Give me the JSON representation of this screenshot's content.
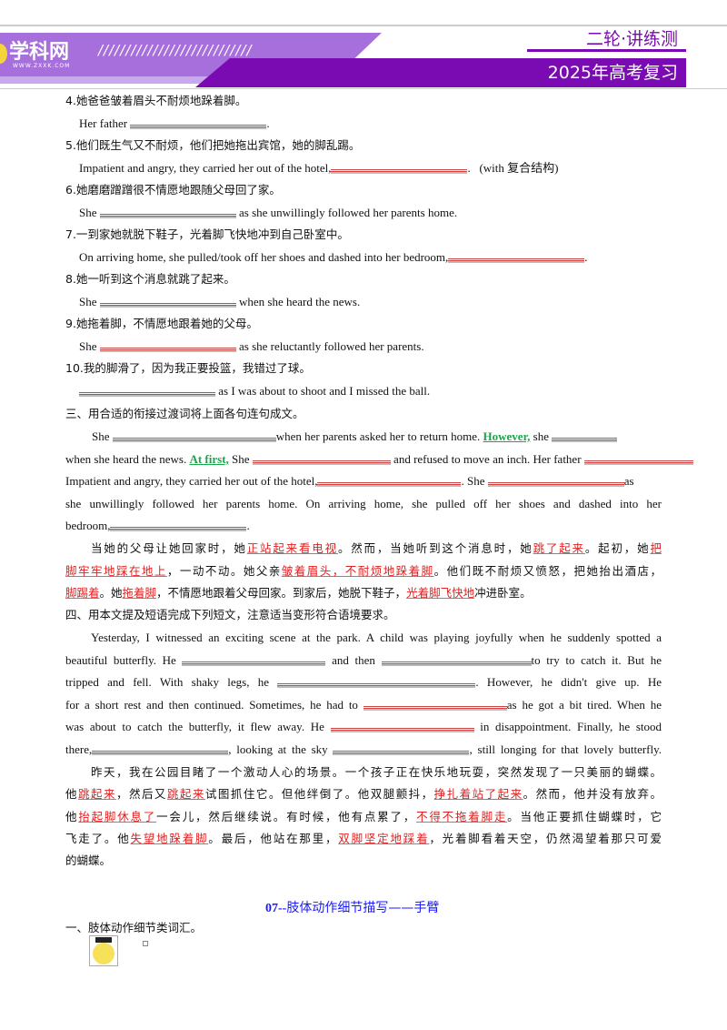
{
  "header": {
    "logo": "学科网",
    "logo_sub": "WWW.ZXXK.COM",
    "slashes": "////////////////////////////",
    "series": "二轮·讲练测",
    "subtitle": "2025年高考复习",
    "accent": "#7a0bb3"
  },
  "items": [
    {
      "zh": "4.她爸爸皱着眉头不耐烦地跺着脚。",
      "en": [
        "Her father",
        "."
      ]
    },
    {
      "zh": "5.他们既生气又不耐烦，他们把她拖出宾馆，她的脚乱踢。",
      "en": [
        "Impatient and angry, they carried her out of the hotel,",
        ".",
        "(with 复合结构)"
      ]
    },
    {
      "zh": "6.她磨磨蹭蹭很不情愿地跟随父母回了家。",
      "en": [
        "She",
        "as she unwillingly followed her parents home."
      ]
    },
    {
      "zh": "7.一到家她就脱下鞋子，光着脚飞快地冲到自己卧室中。",
      "en": [
        "On arriving home, she pulled/took off her shoes and dashed into her bedroom,",
        "."
      ]
    },
    {
      "zh": "8.她一听到这个消息就跳了起来。",
      "en": [
        "She",
        "when she heard the news."
      ]
    },
    {
      "zh": "9.她拖着脚，不情愿地跟着她的父母。",
      "en": [
        "She",
        "as she reluctantly followed her parents."
      ]
    },
    {
      "zh": "10.我的脚滑了，因为我正要投篮，我错过了球。",
      "en": [
        "as I was about to shoot and I missed the ball."
      ]
    }
  ],
  "sec3": {
    "heading": "三、用合适的衔接过渡词将上面各句连句成文。",
    "en": [
      "She",
      "when her parents asked her to return home.",
      "However,",
      "she",
      "when she heard the news.",
      "At first,",
      "She",
      "and refused to move an inch.",
      "Her father",
      "Impatient and angry, they carried her out of the hotel,",
      ". She",
      "as",
      "she unwillingly followed her parents home. On arriving home, she pulled off her shoes and dashed into her",
      "bedroom,",
      "."
    ],
    "zh": [
      "当她的父母让她回家时，她",
      "正站起来看电视",
      "。然而，当她听到这个消息时，她",
      "跳了起来",
      "。起初，她",
      "把",
      "脚牢牢地踩在地上",
      "，一动不动。她父亲",
      "皱着眉头，不耐烦地跺着脚",
      "。他们既不耐烦又愤怒，把她抬出酒店，",
      "脚踢着",
      "。她",
      "拖着脚",
      "，不情愿地跟着父母回家。到家后，她脱下鞋子，",
      "光着脚飞快地",
      "冲进卧室。"
    ]
  },
  "sec4": {
    "heading": "四、用本文提及短语完成下列短文，注意适当变形符合语境要求。",
    "en": [
      "Yesterday, I witnessed an exciting scene at the park. A child was playing joyfully when he suddenly spotted a",
      "beautiful butterfly. He",
      "and then",
      "to try to catch it. But he",
      "tripped and fell. With shaky legs, he",
      ". However, he didn't give up. He",
      "for a short rest and then continued. Sometimes, he had to",
      "as he got a bit tired. When he",
      "was about to catch the butterfly, it flew away. He",
      "in disappointment. Finally, he stood",
      "there,",
      ", looking at the sky",
      ", still longing for that lovely butterfly."
    ],
    "zh": [
      "昨天，我在公园目睹了一个激动人心的场景。一个孩子正在快乐地玩耍，突然发现了一只美丽的蝴蝶。",
      "他",
      "跳起来",
      "，然后又",
      "跳起来",
      "试图抓住它。但他绊倒了。他双腿颤抖，",
      "挣扎着站了起来",
      "。然而，他并没有放弃。",
      "他",
      "抬起脚休息了",
      "一会儿，然后继续说。有时候，他有点累了，",
      "不得不拖着脚走",
      "。当他正要抓住蝴蝶时，它",
      "飞走了。他",
      "失望地跺着脚",
      "。最后，他站在那里，",
      "双脚坚定地踩着",
      "，光着脚看着天空，仍然渴望着那只可爱",
      "的蝴蝶。"
    ]
  },
  "next": {
    "title_num": "07--",
    "title": "肢体动作细节描写——手臂",
    "heading": "一、肢体动作细节类词汇。"
  }
}
